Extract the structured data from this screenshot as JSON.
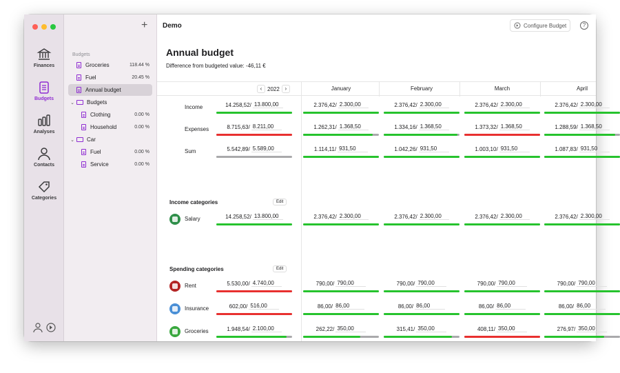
{
  "app": {
    "window_title": "Demo",
    "configure_label": "Configure Budget",
    "help_label": "?"
  },
  "colors": {
    "accent": "#8e2bd1",
    "ok": "#26c32d",
    "over": "#e8302f",
    "neutral": "#a9a9ab"
  },
  "rail": {
    "items": [
      {
        "label": "Finances",
        "icon": "bank-icon",
        "active": false
      },
      {
        "label": "Budgets",
        "icon": "document-icon",
        "active": true
      },
      {
        "label": "Analyses",
        "icon": "bar-chart-icon",
        "active": false
      },
      {
        "label": "Contacts",
        "icon": "person-icon",
        "active": false
      },
      {
        "label": "Categories",
        "icon": "tag-icon",
        "active": false
      }
    ]
  },
  "sidebar": {
    "section": "Budgets",
    "items": [
      {
        "label": "Groceries",
        "pct": "118.44 %",
        "kind": "doc",
        "indent": 0
      },
      {
        "label": "Fuel",
        "pct": "20.45 %",
        "kind": "doc",
        "indent": 0
      },
      {
        "label": "Annual budget",
        "pct": "",
        "kind": "doc",
        "indent": 0,
        "selected": true
      },
      {
        "label": "Budgets",
        "pct": "",
        "kind": "folder",
        "indent": 0
      },
      {
        "label": "Clothing",
        "pct": "0.00 %",
        "kind": "doc",
        "indent": 1
      },
      {
        "label": "Household",
        "pct": "0.00 %",
        "kind": "doc",
        "indent": 1
      },
      {
        "label": "Car",
        "pct": "",
        "kind": "folder",
        "indent": 0
      },
      {
        "label": "Fuel",
        "pct": "0.00 %",
        "kind": "doc",
        "indent": 1
      },
      {
        "label": "Service",
        "pct": "0.00 %",
        "kind": "doc",
        "indent": 1
      }
    ]
  },
  "main": {
    "title": "Annual budget",
    "subtitle": "Difference from budgeted value: -46,11 €",
    "year": "2022",
    "months": [
      "January",
      "February",
      "March",
      "April"
    ],
    "income_section": "Income categories",
    "spending_section": "Spending categories",
    "edit_label": "Edit",
    "summary_rows": [
      {
        "label": "Income",
        "total": {
          "actual": "14.258,52",
          "budget": "13.800,00",
          "fill": 1.0,
          "color": "ok"
        },
        "months": [
          {
            "actual": "2.376,42",
            "budget": "2.300,00",
            "fill": 1.0,
            "color": "ok"
          },
          {
            "actual": "2.376,42",
            "budget": "2.300,00",
            "fill": 1.0,
            "color": "ok"
          },
          {
            "actual": "2.376,42",
            "budget": "2.300,00",
            "fill": 1.0,
            "color": "ok"
          },
          {
            "actual": "2.376,42",
            "budget": "2.300,00",
            "fill": 1.0,
            "color": "ok"
          }
        ]
      },
      {
        "label": "Expenses",
        "total": {
          "actual": "8.715,63",
          "budget": "8.211,00",
          "fill": 1.0,
          "color": "over"
        },
        "months": [
          {
            "actual": "1.262,31",
            "budget": "1.368,50",
            "fill": 0.92,
            "color": "ok"
          },
          {
            "actual": "1.334,16",
            "budget": "1.368,50",
            "fill": 0.97,
            "color": "ok"
          },
          {
            "actual": "1.373,32",
            "budget": "1.368,50",
            "fill": 1.0,
            "color": "over"
          },
          {
            "actual": "1.288,59",
            "budget": "1.368,50",
            "fill": 0.94,
            "color": "ok"
          }
        ]
      },
      {
        "label": "Sum",
        "total": {
          "actual": "5.542,89",
          "budget": "5.589,00",
          "fill": 0.99,
          "color": "neutral"
        },
        "months": [
          {
            "actual": "1.114,11",
            "budget": "931,50",
            "fill": 1.0,
            "color": "ok"
          },
          {
            "actual": "1.042,26",
            "budget": "931,50",
            "fill": 1.0,
            "color": "ok"
          },
          {
            "actual": "1.003,10",
            "budget": "931,50",
            "fill": 1.0,
            "color": "ok"
          },
          {
            "actual": "1.087,83",
            "budget": "931,50",
            "fill": 1.0,
            "color": "ok"
          }
        ]
      }
    ],
    "income_rows": [
      {
        "label": "Salary",
        "icon": "salary-icon",
        "icon_color": "#2f8f4a",
        "total": {
          "actual": "14.258,52",
          "budget": "13.800,00",
          "fill": 1.0,
          "color": "ok"
        },
        "months": [
          {
            "actual": "2.376,42",
            "budget": "2.300,00",
            "fill": 1.0,
            "color": "ok"
          },
          {
            "actual": "2.376,42",
            "budget": "2.300,00",
            "fill": 1.0,
            "color": "ok"
          },
          {
            "actual": "2.376,42",
            "budget": "2.300,00",
            "fill": 1.0,
            "color": "ok"
          },
          {
            "actual": "2.376,42",
            "budget": "2.300,00",
            "fill": 1.0,
            "color": "ok"
          }
        ]
      }
    ],
    "spending_rows": [
      {
        "label": "Rent",
        "icon": "house-icon",
        "icon_color": "#b32424",
        "total": {
          "actual": "5.530,00",
          "budget": "4.740,00",
          "fill": 1.0,
          "color": "over"
        },
        "months": [
          {
            "actual": "790,00",
            "budget": "790,00",
            "fill": 1.0,
            "color": "ok"
          },
          {
            "actual": "790,00",
            "budget": "790,00",
            "fill": 1.0,
            "color": "ok"
          },
          {
            "actual": "790,00",
            "budget": "790,00",
            "fill": 1.0,
            "color": "ok"
          },
          {
            "actual": "790,00",
            "budget": "790,00",
            "fill": 1.0,
            "color": "ok"
          }
        ]
      },
      {
        "label": "Insurance",
        "icon": "shield-icon",
        "icon_color": "#4a8fd6",
        "total": {
          "actual": "602,00",
          "budget": "516,00",
          "fill": 1.0,
          "color": "over"
        },
        "months": [
          {
            "actual": "86,00",
            "budget": "86,00",
            "fill": 1.0,
            "color": "ok"
          },
          {
            "actual": "86,00",
            "budget": "86,00",
            "fill": 1.0,
            "color": "ok"
          },
          {
            "actual": "86,00",
            "budget": "86,00",
            "fill": 1.0,
            "color": "ok"
          },
          {
            "actual": "86,00",
            "budget": "86,00",
            "fill": 1.0,
            "color": "ok"
          }
        ]
      },
      {
        "label": "Groceries",
        "icon": "apple-icon",
        "icon_color": "#3aa83f",
        "total": {
          "actual": "1.948,54",
          "budget": "2.100,00",
          "fill": 0.93,
          "color": "ok"
        },
        "months": [
          {
            "actual": "262,22",
            "budget": "350,00",
            "fill": 0.75,
            "color": "ok"
          },
          {
            "actual": "315,41",
            "budget": "350,00",
            "fill": 0.9,
            "color": "ok"
          },
          {
            "actual": "408,11",
            "budget": "350,00",
            "fill": 1.0,
            "color": "over"
          },
          {
            "actual": "276,97",
            "budget": "350,00",
            "fill": 0.79,
            "color": "ok"
          }
        ]
      }
    ]
  }
}
